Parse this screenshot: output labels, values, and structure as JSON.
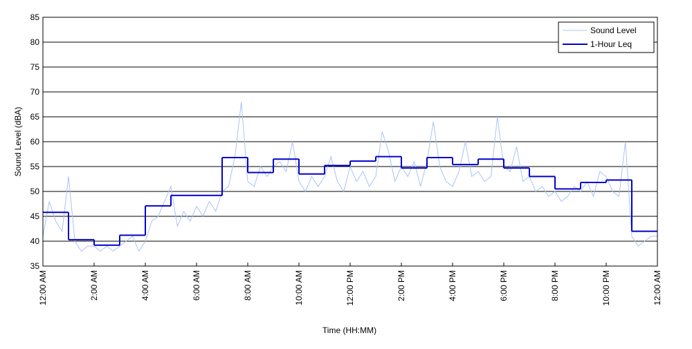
{
  "chart_data": {
    "type": "line",
    "xlabel": "Time (HH:MM)",
    "ylabel": "Sound Level (dBA)",
    "xlim": [
      0,
      24
    ],
    "ylim": [
      35,
      85
    ],
    "yticks": [
      35,
      40,
      45,
      50,
      55,
      60,
      65,
      70,
      75,
      80,
      85
    ],
    "xticks": [
      {
        "value": 0,
        "label": "12:00 AM"
      },
      {
        "value": 2,
        "label": "2:00 AM"
      },
      {
        "value": 4,
        "label": "4:00 AM"
      },
      {
        "value": 6,
        "label": "6:00 AM"
      },
      {
        "value": 8,
        "label": "8:00 AM"
      },
      {
        "value": 10,
        "label": "10:00 AM"
      },
      {
        "value": 12,
        "label": "12:00 PM"
      },
      {
        "value": 14,
        "label": "2:00 PM"
      },
      {
        "value": 16,
        "label": "4:00 PM"
      },
      {
        "value": 18,
        "label": "6:00 PM"
      },
      {
        "value": 20,
        "label": "8:00 PM"
      },
      {
        "value": 22,
        "label": "10:00 PM"
      },
      {
        "value": 24,
        "label": "12:00 AM"
      }
    ],
    "grid": true,
    "legend": "upper right",
    "series": [
      {
        "name": "Sound Level",
        "color": "#a9c3f2",
        "style": "line",
        "x": [
          0,
          0.25,
          0.5,
          0.75,
          1,
          1.25,
          1.5,
          1.75,
          2,
          2.25,
          2.5,
          2.75,
          3,
          3.25,
          3.5,
          3.75,
          4,
          4.25,
          4.5,
          4.75,
          5,
          5.25,
          5.5,
          5.75,
          6,
          6.25,
          6.5,
          6.75,
          7,
          7.25,
          7.5,
          7.75,
          8,
          8.25,
          8.5,
          8.75,
          9,
          9.25,
          9.5,
          9.75,
          10,
          10.25,
          10.5,
          10.75,
          11,
          11.25,
          11.5,
          11.75,
          12,
          12.25,
          12.5,
          12.75,
          13,
          13.25,
          13.5,
          13.75,
          14,
          14.25,
          14.5,
          14.75,
          15,
          15.25,
          15.5,
          15.75,
          16,
          16.25,
          16.5,
          16.75,
          17,
          17.25,
          17.5,
          17.75,
          18,
          18.25,
          18.5,
          18.75,
          19,
          19.25,
          19.5,
          19.75,
          20,
          20.25,
          20.5,
          20.75,
          21,
          21.25,
          21.5,
          21.75,
          22,
          22.25,
          22.5,
          22.75,
          23,
          23.25,
          23.5,
          23.75,
          24
        ],
        "values": [
          41,
          48,
          44,
          42,
          53,
          40,
          38,
          39,
          39,
          38,
          39,
          38,
          39,
          40,
          41,
          38,
          40,
          44,
          45,
          48,
          51,
          43,
          46,
          44,
          47,
          45,
          48,
          46,
          50,
          51,
          57,
          68,
          52,
          51,
          55,
          53,
          55,
          56,
          54,
          60,
          52,
          50,
          53,
          51,
          53,
          57,
          52,
          50,
          55,
          52,
          54,
          51,
          53,
          62,
          58,
          52,
          55,
          53,
          56,
          51,
          56,
          64,
          55,
          52,
          51,
          54,
          60,
          53,
          54,
          52,
          53,
          65,
          55,
          54,
          59,
          52,
          53,
          50,
          51,
          49,
          50,
          48,
          49,
          51,
          50,
          52,
          49,
          54,
          53,
          50,
          49,
          60,
          41,
          39,
          40,
          41,
          41
        ]
      },
      {
        "name": "1-Hour Leq",
        "color": "#0000cc",
        "style": "step",
        "x": [
          0,
          1,
          2,
          3,
          4,
          5,
          6,
          7,
          8,
          9,
          10,
          11,
          12,
          13,
          14,
          15,
          16,
          17,
          18,
          19,
          20,
          21,
          22,
          23
        ],
        "values": [
          45.8,
          40.3,
          39.2,
          41.2,
          47.1,
          49.2,
          49.2,
          56.8,
          53.8,
          56.5,
          53.5,
          55.2,
          56.1,
          57.0,
          54.7,
          56.8,
          55.4,
          56.5,
          54.7,
          53.0,
          50.5,
          51.8,
          52.3,
          42.0
        ]
      }
    ]
  }
}
